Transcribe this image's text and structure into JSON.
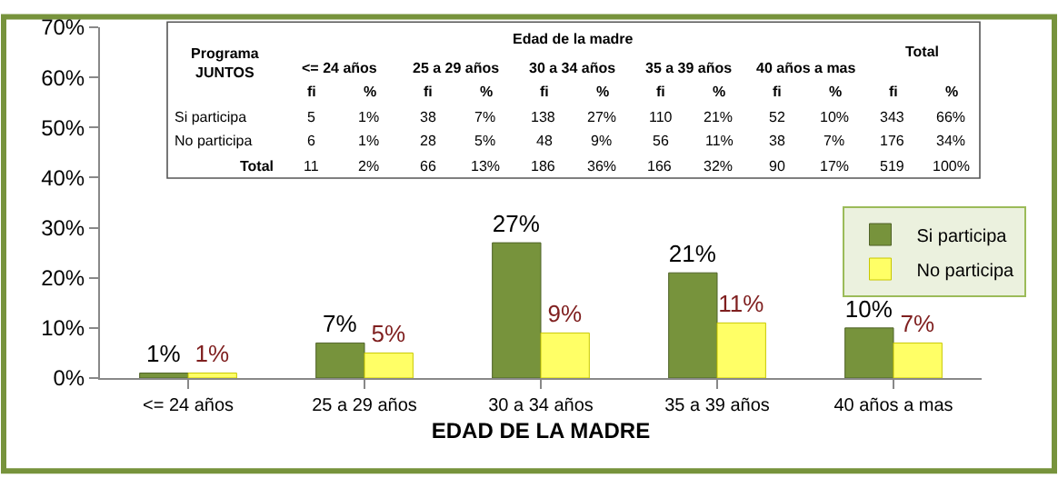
{
  "chart_data": {
    "type": "bar",
    "xlabel": "EDAD DE LA MADRE",
    "categories": [
      "<= 24 años",
      "25 a 29 años",
      "30 a 34 años",
      "35 a 39 años",
      "40 años a mas"
    ],
    "series": [
      {
        "name": "Si participa",
        "color": "#77933c",
        "values": [
          1,
          7,
          27,
          21,
          10
        ],
        "value_labels": [
          "1%",
          "7%",
          "27%",
          "21%",
          "10%"
        ]
      },
      {
        "name": "No participa",
        "color": "#ffff66",
        "values": [
          1,
          5,
          9,
          11,
          7
        ],
        "value_labels": [
          "1%",
          "5%",
          "9%",
          "11%",
          "7%"
        ]
      }
    ],
    "ylim": [
      0,
      70
    ],
    "yticks": [
      {
        "value": 0,
        "label": "0%"
      },
      {
        "value": 10,
        "label": "10%"
      },
      {
        "value": 20,
        "label": "20%"
      },
      {
        "value": 30,
        "label": "30%"
      },
      {
        "value": 40,
        "label": "40%"
      },
      {
        "value": 50,
        "label": "50%"
      },
      {
        "value": 60,
        "label": "60%"
      },
      {
        "value": 70,
        "label": "70%"
      }
    ],
    "grid": false,
    "legend": "right",
    "annotations": [
      "Programa\nJUNTOS",
      "Edad de la madre",
      "Total",
      "<= 24 años",
      "25 a 29 años",
      "30 a 34 años",
      "35 a 39 años",
      "40 años a mas",
      "fi",
      "%",
      "fi",
      "%",
      "fi",
      "%",
      "fi",
      "%",
      "fi",
      "%",
      "fi",
      "%",
      "Si participa",
      "5",
      "1%",
      "38",
      "7%",
      "138",
      "27%",
      "110",
      "21%",
      "52",
      "10%",
      "343",
      "66%",
      "No participa",
      "6",
      "1%",
      "28",
      "5%",
      "48",
      "9%",
      "56",
      "11%",
      "38",
      "7%",
      "176",
      "34%",
      "Total",
      "11",
      "2%",
      "66",
      "13%",
      "186",
      "36%",
      "166",
      "32%",
      "90",
      "17%",
      "519",
      "100%"
    ]
  }
}
